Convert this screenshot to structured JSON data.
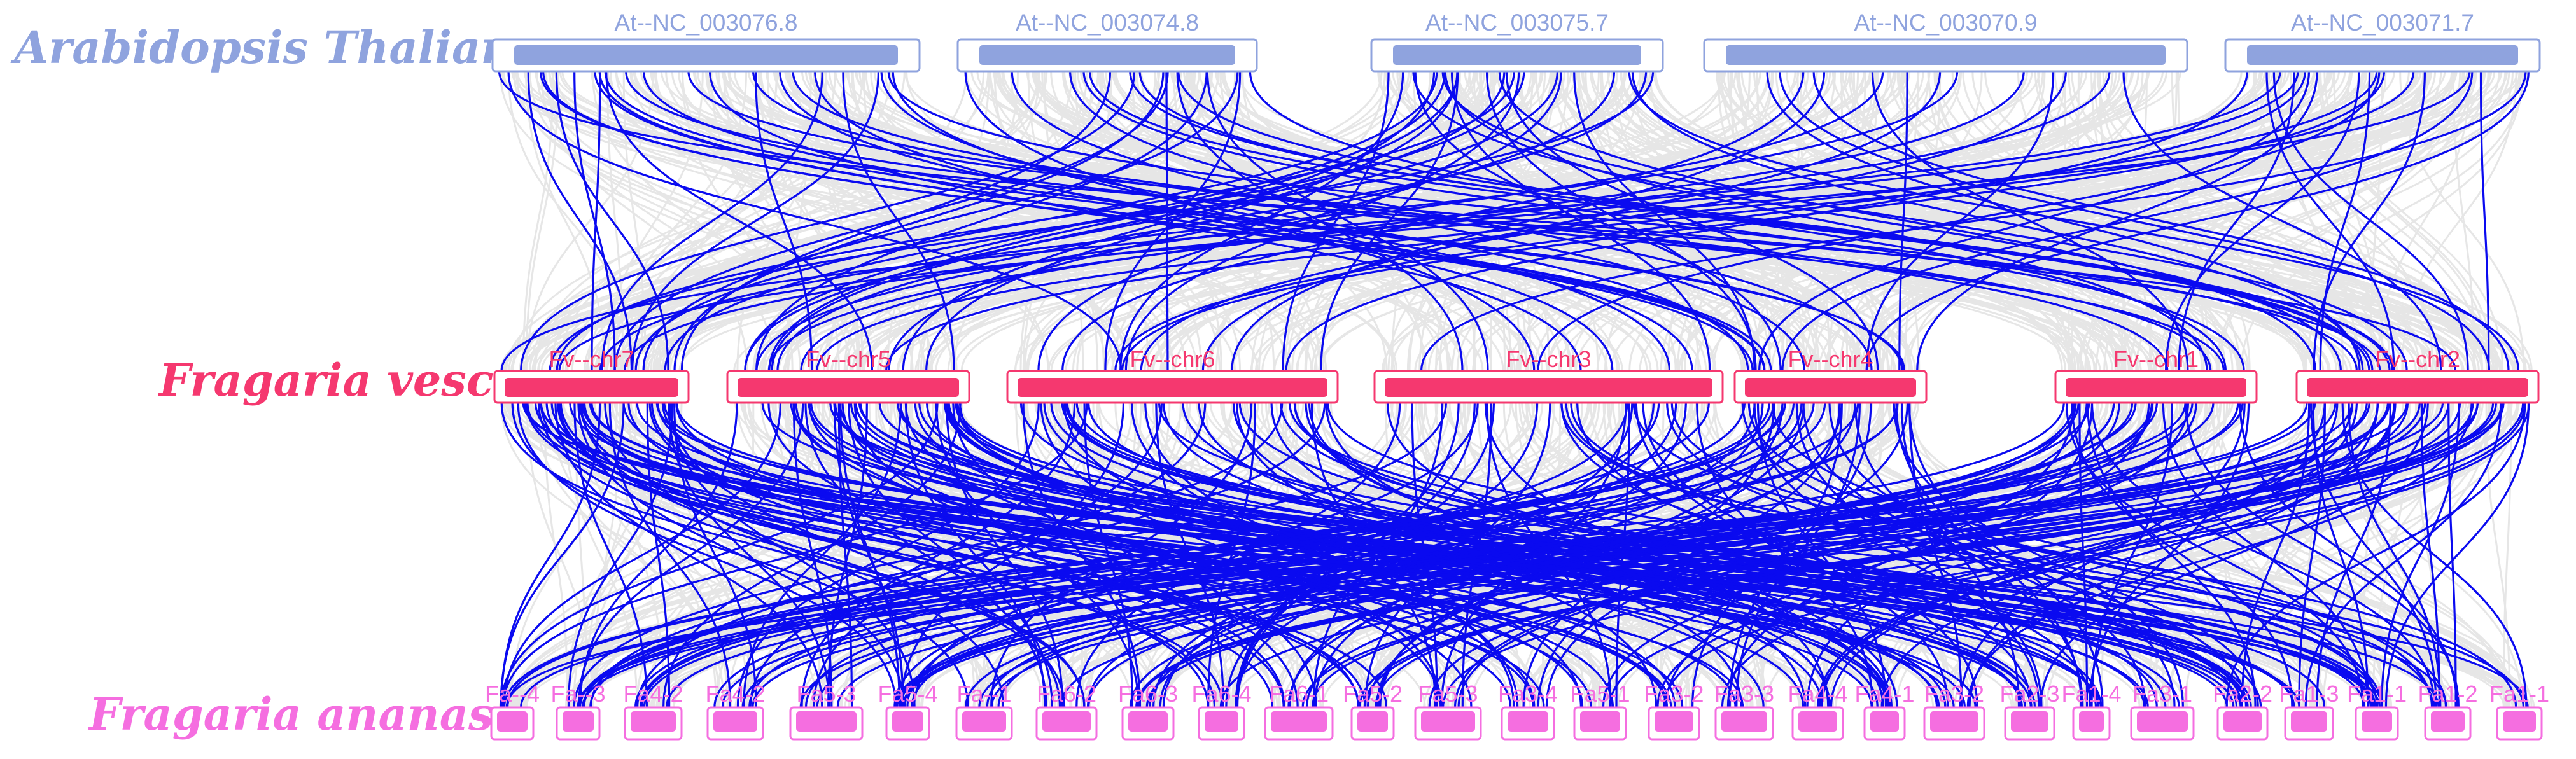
{
  "species": [
    {
      "name": "Arabidopsis Thaliana",
      "color": "#8fa3de"
    },
    {
      "name": "Fragaria vesca",
      "color": "#f5386f"
    },
    {
      "name": "Fragaria ananasa",
      "color": "#f56ee0"
    }
  ],
  "colors": {
    "background_links": "#e6e6e6",
    "highlight_links": "#0a0af0"
  },
  "tracks": {
    "top": [
      "At--NC_003076.8",
      "At--NC_003074.8",
      "At--NC_003075.7",
      "At--NC_003070.9",
      "At--NC_003071.7"
    ],
    "middle": [
      "Fv--chr7",
      "Fv--chr5",
      "Fv--chr6",
      "Fv--chr3",
      "Fv--chr4",
      "Fv--chr1",
      "Fv--chr2"
    ],
    "bottom": [
      "Fa--4",
      "Fa--3",
      "Fa4-2",
      "Fa4-2",
      "Fa5-3",
      "Fa5-4",
      "Fa--1",
      "Fa6-2",
      "Fa6-3",
      "Fa6-4",
      "Fa6-1",
      "Fa5-2",
      "Fa5-3",
      "Fa3-4",
      "Fa5-1",
      "Fa3-2",
      "Fa3-3",
      "Fa4-4",
      "Fa4-1",
      "Fa3-2",
      "Fa2-3",
      "Fa1-4",
      "Fa3-1",
      "Fa2-2",
      "Fa1-3",
      "Fa1-1",
      "Fa1-2",
      "Fa1-1"
    ]
  }
}
